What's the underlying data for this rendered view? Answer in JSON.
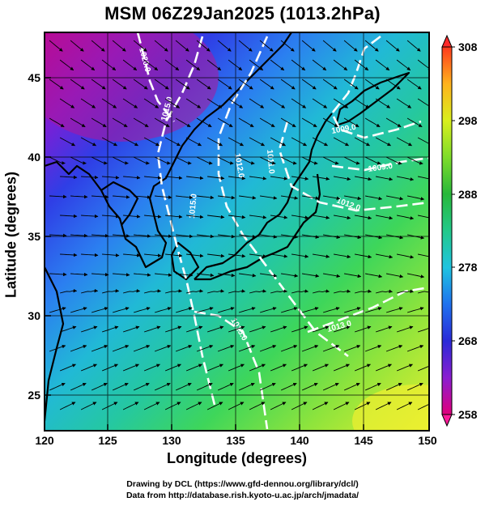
{
  "title": "MSM 06Z29Jan2025 (1013.2hPa)",
  "axes": {
    "xlabel": "Longitude (degrees)",
    "ylabel": "Latitude  (degrees)",
    "xlim": [
      120,
      150
    ],
    "ylim": [
      22.5,
      47.5
    ],
    "xticks": [
      "120",
      "125",
      "130",
      "135",
      "140",
      "145",
      "150"
    ],
    "yticks": [
      "25",
      "30",
      "35",
      "40",
      "45"
    ]
  },
  "colorbar": {
    "min": 258,
    "max": 308,
    "tick_labels": [
      "308",
      "298",
      "288",
      "278",
      "268",
      "258"
    ]
  },
  "isobars": {
    "labels": [
      "1020.0",
      "1015.0",
      "1012.0",
      "1011.0",
      "1015.0",
      "1009.0",
      "1009.0",
      "1012.0",
      "1015.0",
      "1013.0"
    ]
  },
  "credits": {
    "line1": "Drawing by DCL (https://www.gfd-dennou.org/library/dcl/)",
    "line2": "Data from http://database.rish.kyoto-u.ac.jp/arch/jmadata/"
  }
}
